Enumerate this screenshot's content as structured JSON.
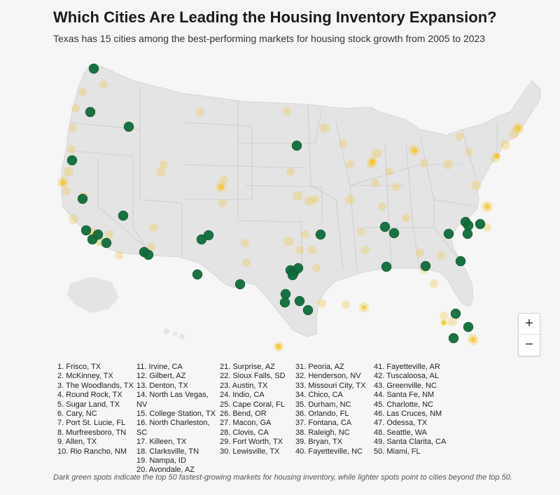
{
  "title": "Which Cities Are Leading the Housing Inventory Expansion?",
  "subtitle": "Texas has 15 cities among the best-performing markets for housing stock growth from 2005 to 2023",
  "zoom": {
    "in_label": "+",
    "out_label": "−"
  },
  "colors": {
    "top50": "#0f6b3a",
    "other": "#f2c94c",
    "land": "#e4e4e4",
    "border": "#c9c9c9"
  },
  "cities": [
    "1. Frisco, TX",
    "2. McKinney, TX",
    "3. The Woodlands, TX",
    "4. Round Rock, TX",
    "5. Sugar Land, TX",
    "6. Cary, NC",
    "7. Port St. Lucie, FL",
    "8. Murfreesboro, TN",
    "9.  Allen, TX",
    "10. Rio Rancho, NM",
    "11. Irvine, CA",
    "12. Gilbert, AZ",
    "13. Denton, TX",
    "14. North Las Vegas, NV",
    "15. College Station, TX",
    "16. North Charleston, SC",
    "17. Killeen, TX",
    "18. Clarksville, TN",
    "19. Nampa, ID",
    "20. Avondale, AZ",
    "21. Surprise, AZ",
    "22. Sioux Falls, SD",
    "23. Austin, TX",
    "24. Indio, CA",
    "25. Cape Coral, FL",
    "26. Bend, OR",
    "27. Macon, GA",
    "28. Clovis, CA",
    "29. Fort Worth, TX",
    "30. Lewisville, TX",
    "31. Peoria, AZ",
    "32. Henderson, NV",
    "33. Missouri City, TX",
    "34. Chico, CA",
    "35. Durham, NC",
    "36. Orlando, FL",
    "37. Fontana, CA",
    "38. Raleigh, NC",
    "39. Bryan, TX",
    "40. Fayetteville, NC",
    "41. Fayetteville, AR",
    "42. Tuscaloosa, AL",
    "43. Greenville, NC",
    "44. Santa Fe, NM",
    "45. Charlotte, NC",
    "46. Las Cruces, NM",
    "47. Odessa, TX",
    "48. Seattle, WA",
    "49. Santa Clarita, CA",
    "50. Miami, FL"
  ],
  "footnote": "Dark green spots indicate the top 50 fastest-growing markets for housing inventory, while lighter spots point to cities beyond the top 50."
}
